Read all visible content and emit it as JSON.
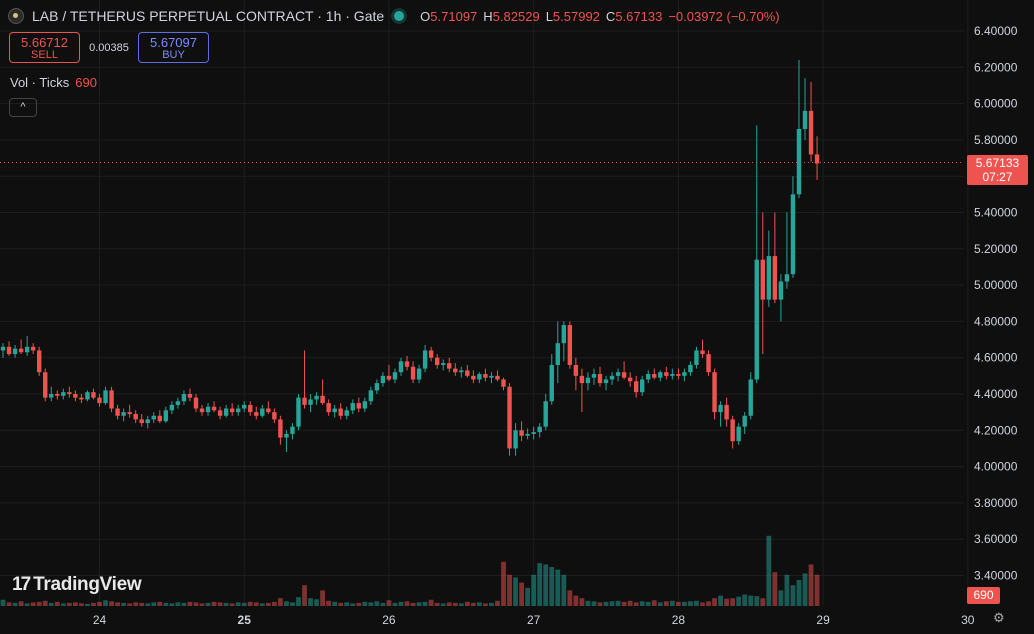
{
  "header": {
    "title": "LAB / TETHERUS PERPETUAL CONTRACT · 1h · Gate",
    "ohlc": [
      {
        "label": "O",
        "value": "5.71097"
      },
      {
        "label": "H",
        "value": "5.82529"
      },
      {
        "label": "L",
        "value": "5.57992"
      },
      {
        "label": "C",
        "value": "5.67133"
      }
    ],
    "change": "−0.03972 (−0.70%)"
  },
  "trade": {
    "sell_price": "5.66712",
    "sell_label": "SELL",
    "spread": "0.00385",
    "buy_price": "5.67097",
    "buy_label": "BUY"
  },
  "volume_legend": {
    "label": "Vol · Ticks",
    "value": "690"
  },
  "collapse_label": "^",
  "logo": {
    "text": "TradingView"
  },
  "last_price": {
    "value": "5.67133",
    "countdown": "07:27"
  },
  "last_volume": "690",
  "colors": {
    "up": "#26a69a",
    "down": "#ef5350",
    "background": "#0f0f0f",
    "grid": "#1e1e1e",
    "text": "#d1d4dc"
  },
  "icons": {
    "symbol": "lab-coin-icon",
    "status": "market-open-dot-icon",
    "settings": "gear-icon"
  },
  "chart_data": {
    "type": "candlestick",
    "interval": "1h",
    "ylim": [
      3.3,
      6.45
    ],
    "y_ticks": [
      "6.40000",
      "6.20000",
      "6.00000",
      "5.80000",
      "5.60000",
      "5.40000",
      "5.20000",
      "5.00000",
      "4.80000",
      "4.60000",
      "4.40000",
      "4.20000",
      "4.00000",
      "3.80000",
      "3.60000",
      "3.40000"
    ],
    "y_tick_values": [
      6.4,
      6.2,
      6.0,
      5.8,
      5.6,
      5.4,
      5.2,
      5.0,
      4.8,
      4.6,
      4.4,
      4.2,
      4.0,
      3.8,
      3.6,
      3.4
    ],
    "x_ticks": [
      "24",
      "25",
      "26",
      "27",
      "28",
      "29",
      "30"
    ],
    "x_tick_hours": [
      0,
      24,
      48,
      72,
      96,
      120,
      144
    ],
    "start_hour": -16,
    "candles": [
      [
        4.64,
        4.68,
        4.6,
        4.66
      ],
      [
        4.66,
        4.69,
        4.61,
        4.62
      ],
      [
        4.62,
        4.67,
        4.6,
        4.65
      ],
      [
        4.65,
        4.7,
        4.62,
        4.63
      ],
      [
        4.63,
        4.72,
        4.61,
        4.66
      ],
      [
        4.66,
        4.68,
        4.62,
        4.64
      ],
      [
        4.64,
        4.66,
        4.5,
        4.52
      ],
      [
        4.52,
        4.54,
        4.36,
        4.38
      ],
      [
        4.38,
        4.44,
        4.36,
        4.4
      ],
      [
        4.4,
        4.42,
        4.37,
        4.39
      ],
      [
        4.39,
        4.43,
        4.37,
        4.41
      ],
      [
        4.41,
        4.44,
        4.38,
        4.4
      ],
      [
        4.4,
        4.42,
        4.36,
        4.38
      ],
      [
        4.38,
        4.4,
        4.35,
        4.37
      ],
      [
        4.37,
        4.42,
        4.36,
        4.41
      ],
      [
        4.41,
        4.43,
        4.37,
        4.38
      ],
      [
        4.38,
        4.4,
        4.33,
        4.35
      ],
      [
        4.35,
        4.44,
        4.34,
        4.42
      ],
      [
        4.42,
        4.44,
        4.3,
        4.32
      ],
      [
        4.32,
        4.34,
        4.26,
        4.28
      ],
      [
        4.28,
        4.32,
        4.25,
        4.3
      ],
      [
        4.3,
        4.34,
        4.27,
        4.29
      ],
      [
        4.29,
        4.31,
        4.24,
        4.26
      ],
      [
        4.26,
        4.29,
        4.22,
        4.24
      ],
      [
        4.24,
        4.28,
        4.21,
        4.26
      ],
      [
        4.26,
        4.3,
        4.24,
        4.28
      ],
      [
        4.28,
        4.31,
        4.24,
        4.25
      ],
      [
        4.25,
        4.33,
        4.24,
        4.31
      ],
      [
        4.31,
        4.36,
        4.29,
        4.34
      ],
      [
        4.34,
        4.38,
        4.32,
        4.36
      ],
      [
        4.36,
        4.42,
        4.34,
        4.4
      ],
      [
        4.4,
        4.43,
        4.36,
        4.38
      ],
      [
        4.38,
        4.4,
        4.3,
        4.32
      ],
      [
        4.32,
        4.34,
        4.28,
        4.3
      ],
      [
        4.3,
        4.35,
        4.28,
        4.33
      ],
      [
        4.33,
        4.36,
        4.3,
        4.31
      ],
      [
        4.31,
        4.33,
        4.26,
        4.28
      ],
      [
        4.28,
        4.34,
        4.27,
        4.32
      ],
      [
        4.32,
        4.35,
        4.28,
        4.3
      ],
      [
        4.3,
        4.34,
        4.28,
        4.32
      ],
      [
        4.32,
        4.36,
        4.3,
        4.34
      ],
      [
        4.34,
        4.36,
        4.28,
        4.3
      ],
      [
        4.3,
        4.33,
        4.26,
        4.28
      ],
      [
        4.28,
        4.34,
        4.27,
        4.32
      ],
      [
        4.32,
        4.36,
        4.29,
        4.3
      ],
      [
        4.3,
        4.32,
        4.24,
        4.26
      ],
      [
        4.26,
        4.28,
        4.12,
        4.16
      ],
      [
        4.16,
        4.2,
        4.08,
        4.18
      ],
      [
        4.18,
        4.24,
        4.15,
        4.22
      ],
      [
        4.22,
        4.4,
        4.2,
        4.38
      ],
      [
        4.38,
        4.64,
        4.32,
        4.34
      ],
      [
        4.34,
        4.4,
        4.3,
        4.37
      ],
      [
        4.37,
        4.41,
        4.34,
        4.39
      ],
      [
        4.39,
        4.48,
        4.34,
        4.35
      ],
      [
        4.35,
        4.37,
        4.28,
        4.3
      ],
      [
        4.3,
        4.34,
        4.27,
        4.32
      ],
      [
        4.32,
        4.35,
        4.26,
        4.28
      ],
      [
        4.28,
        4.33,
        4.26,
        4.31
      ],
      [
        4.31,
        4.37,
        4.29,
        4.35
      ],
      [
        4.35,
        4.38,
        4.3,
        4.32
      ],
      [
        4.32,
        4.38,
        4.3,
        4.36
      ],
      [
        4.36,
        4.44,
        4.34,
        4.42
      ],
      [
        4.42,
        4.48,
        4.4,
        4.46
      ],
      [
        4.46,
        4.52,
        4.44,
        4.5
      ],
      [
        4.5,
        4.56,
        4.47,
        4.48
      ],
      [
        4.48,
        4.54,
        4.46,
        4.52
      ],
      [
        4.52,
        4.6,
        4.5,
        4.58
      ],
      [
        4.58,
        4.61,
        4.53,
        4.55
      ],
      [
        4.55,
        4.58,
        4.46,
        4.48
      ],
      [
        4.48,
        4.56,
        4.46,
        4.54
      ],
      [
        4.54,
        4.67,
        4.52,
        4.64
      ],
      [
        4.64,
        4.66,
        4.58,
        4.6
      ],
      [
        4.6,
        4.62,
        4.54,
        4.56
      ],
      [
        4.56,
        4.59,
        4.53,
        4.57
      ],
      [
        4.57,
        4.6,
        4.52,
        4.54
      ],
      [
        4.54,
        4.57,
        4.5,
        4.52
      ],
      [
        4.52,
        4.55,
        4.49,
        4.53
      ],
      [
        4.53,
        4.56,
        4.49,
        4.5
      ],
      [
        4.5,
        4.53,
        4.46,
        4.48
      ],
      [
        4.48,
        4.52,
        4.46,
        4.51
      ],
      [
        4.51,
        4.54,
        4.47,
        4.49
      ],
      [
        4.49,
        4.52,
        4.46,
        4.5
      ],
      [
        4.5,
        4.53,
        4.47,
        4.48
      ],
      [
        4.48,
        4.49,
        4.42,
        4.44
      ],
      [
        4.44,
        4.46,
        4.06,
        4.1
      ],
      [
        4.1,
        4.24,
        4.06,
        4.2
      ],
      [
        4.2,
        4.25,
        4.14,
        4.17
      ],
      [
        4.17,
        4.21,
        4.15,
        4.18
      ],
      [
        4.18,
        4.22,
        4.15,
        4.19
      ],
      [
        4.19,
        4.24,
        4.16,
        4.22
      ],
      [
        4.22,
        4.4,
        4.2,
        4.36
      ],
      [
        4.36,
        4.62,
        4.34,
        4.56
      ],
      [
        4.56,
        4.8,
        4.46,
        4.68
      ],
      [
        4.68,
        4.8,
        4.58,
        4.78
      ],
      [
        4.78,
        4.8,
        4.54,
        4.56
      ],
      [
        4.56,
        4.6,
        4.42,
        4.5
      ],
      [
        4.5,
        4.54,
        4.3,
        4.46
      ],
      [
        4.46,
        4.52,
        4.42,
        4.49
      ],
      [
        4.49,
        4.54,
        4.45,
        4.51
      ],
      [
        4.51,
        4.55,
        4.44,
        4.46
      ],
      [
        4.46,
        4.5,
        4.42,
        4.48
      ],
      [
        4.48,
        4.52,
        4.45,
        4.5
      ],
      [
        4.5,
        4.54,
        4.47,
        4.52
      ],
      [
        4.52,
        4.58,
        4.48,
        4.49
      ],
      [
        4.49,
        4.52,
        4.44,
        4.47
      ],
      [
        4.47,
        4.5,
        4.38,
        4.41
      ],
      [
        4.41,
        4.5,
        4.39,
        4.48
      ],
      [
        4.48,
        4.53,
        4.46,
        4.51
      ],
      [
        4.51,
        4.54,
        4.48,
        4.49
      ],
      [
        4.49,
        4.53,
        4.47,
        4.52
      ],
      [
        4.52,
        4.55,
        4.48,
        4.5
      ],
      [
        4.5,
        4.54,
        4.48,
        4.51
      ],
      [
        4.51,
        4.54,
        4.48,
        4.5
      ],
      [
        4.5,
        4.54,
        4.47,
        4.52
      ],
      [
        4.52,
        4.58,
        4.5,
        4.56
      ],
      [
        4.56,
        4.66,
        4.54,
        4.64
      ],
      [
        4.64,
        4.7,
        4.6,
        4.62
      ],
      [
        4.62,
        4.64,
        4.5,
        4.52
      ],
      [
        4.52,
        4.54,
        4.26,
        4.3
      ],
      [
        4.3,
        4.36,
        4.22,
        4.34
      ],
      [
        4.34,
        4.38,
        4.22,
        4.26
      ],
      [
        4.26,
        4.28,
        4.1,
        4.14
      ],
      [
        4.14,
        4.24,
        4.12,
        4.22
      ],
      [
        4.22,
        4.3,
        4.18,
        4.28
      ],
      [
        4.28,
        4.52,
        4.26,
        4.48
      ],
      [
        4.48,
        5.88,
        4.46,
        5.14
      ],
      [
        5.14,
        5.4,
        4.62,
        4.92
      ],
      [
        4.92,
        5.3,
        4.88,
        5.16
      ],
      [
        5.16,
        5.4,
        4.9,
        4.92
      ],
      [
        4.92,
        5.06,
        4.8,
        5.02
      ],
      [
        5.02,
        5.4,
        4.98,
        5.06
      ],
      [
        5.06,
        5.6,
        5.04,
        5.5
      ],
      [
        5.5,
        6.24,
        5.48,
        5.86
      ],
      [
        5.86,
        6.14,
        5.8,
        5.96
      ],
      [
        5.96,
        6.12,
        5.68,
        5.72
      ],
      [
        5.72,
        5.82,
        5.58,
        5.67
      ]
    ],
    "volume": [
      24,
      14,
      12,
      18,
      10,
      14,
      16,
      20,
      12,
      16,
      10,
      12,
      14,
      10,
      8,
      12,
      16,
      22,
      18,
      14,
      12,
      10,
      14,
      12,
      10,
      14,
      16,
      12,
      10,
      14,
      12,
      16,
      14,
      10,
      12,
      16,
      14,
      12,
      10,
      14,
      12,
      16,
      14,
      10,
      12,
      16,
      30,
      18,
      14,
      34,
      80,
      30,
      26,
      60,
      20,
      16,
      12,
      14,
      10,
      12,
      16,
      14,
      18,
      12,
      22,
      12,
      16,
      18,
      12,
      14,
      16,
      24,
      12,
      10,
      14,
      12,
      10,
      16,
      12,
      14,
      10,
      12,
      20,
      170,
      120,
      110,
      90,
      70,
      120,
      165,
      160,
      150,
      140,
      120,
      60,
      40,
      30,
      20,
      18,
      14,
      16,
      18,
      20,
      16,
      20,
      14,
      18,
      16,
      22,
      14,
      18,
      20,
      16,
      16,
      18,
      20,
      14,
      18,
      30,
      40,
      28,
      30,
      36,
      44,
      40,
      38,
      30,
      270,
      130,
      60,
      120,
      80,
      100,
      125,
      160,
      120,
      102,
      30
    ]
  }
}
